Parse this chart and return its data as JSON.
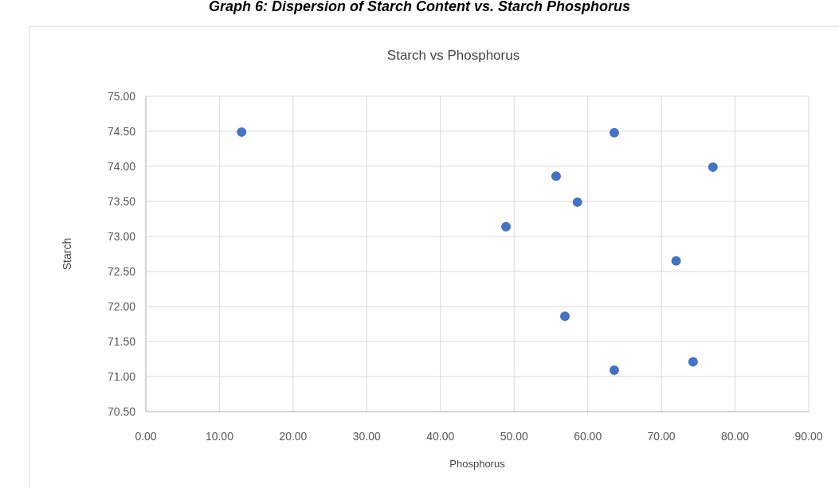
{
  "chart_data": {
    "type": "scatter",
    "title": "Starch vs Phosphorus",
    "xlabel": "Phosphorus",
    "ylabel": "Starch",
    "annotations": [
      "Graph 6: Dispersion of Starch Content vs. Starch Phosphorus"
    ],
    "x": [
      13.0,
      63.6,
      77.0,
      55.7,
      58.6,
      48.9,
      72.0,
      56.9,
      74.3,
      63.6
    ],
    "series": [
      {
        "color": "#4472c4",
        "values": [
          74.49,
          74.48,
          73.99,
          73.86,
          73.49,
          73.14,
          72.65,
          71.86,
          71.21,
          71.09
        ]
      }
    ],
    "xlim": [
      0,
      90
    ],
    "xticks": [
      {
        "value": 0,
        "label": "0.00"
      },
      {
        "value": 10,
        "label": "10.00"
      },
      {
        "value": 20,
        "label": "20.00"
      },
      {
        "value": 30,
        "label": "30.00"
      },
      {
        "value": 40,
        "label": "40.00"
      },
      {
        "value": 50,
        "label": "50.00"
      },
      {
        "value": 60,
        "label": "60.00"
      },
      {
        "value": 70,
        "label": "70.00"
      },
      {
        "value": 80,
        "label": "80.00"
      },
      {
        "value": 90,
        "label": "90.00"
      }
    ],
    "ylim": [
      70.5,
      75
    ],
    "yticks": [
      {
        "value": 70.5,
        "label": "70.50"
      },
      {
        "value": 71,
        "label": "71.00"
      },
      {
        "value": 71.5,
        "label": "71.50"
      },
      {
        "value": 72,
        "label": "72.00"
      },
      {
        "value": 72.5,
        "label": "72.50"
      },
      {
        "value": 73,
        "label": "73.00"
      },
      {
        "value": 73.5,
        "label": "73.50"
      },
      {
        "value": 74,
        "label": "74.00"
      },
      {
        "value": 74.5,
        "label": "74.50"
      },
      {
        "value": 75,
        "label": "75.00"
      }
    ],
    "grid": true,
    "marker": "circle"
  }
}
